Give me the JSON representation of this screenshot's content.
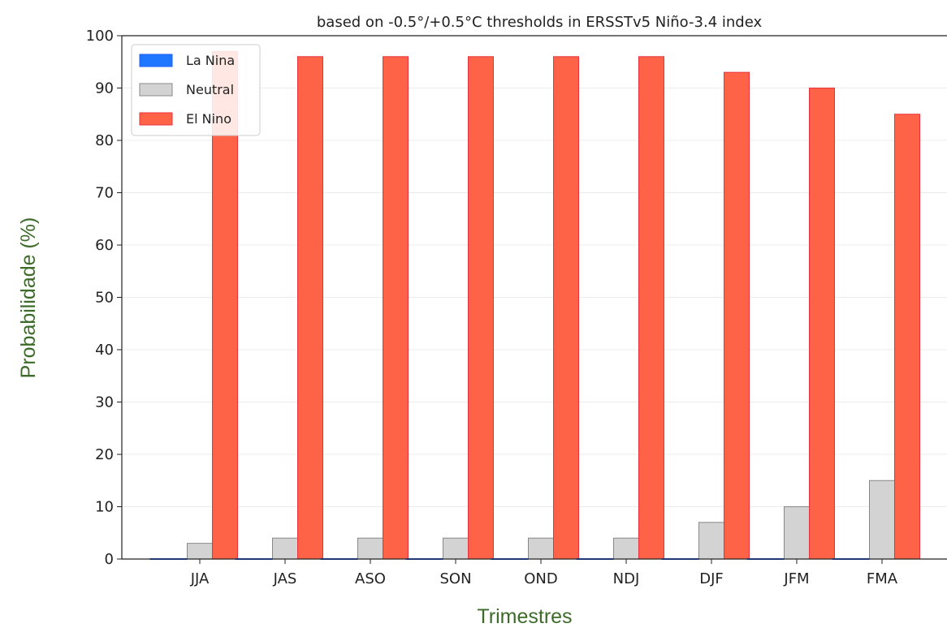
{
  "chart_data": {
    "type": "bar",
    "title": "based on -0.5°/+0.5°C thresholds in ERSSTv5 Niño-3.4 index",
    "xlabel": "Trimestres",
    "ylabel": "Probabilidade (%)",
    "ylim": [
      0,
      100
    ],
    "yticks": [
      "0",
      "10",
      "20",
      "30",
      "40",
      "50",
      "60",
      "70",
      "80",
      "90",
      "100"
    ],
    "grid": true,
    "legend_position": "top-left",
    "categories": [
      "JJA",
      "JAS",
      "ASO",
      "SON",
      "OND",
      "NDJ",
      "DJF",
      "JFM",
      "FMA"
    ],
    "series": [
      {
        "name": "La Nina",
        "color": "#1f77ff",
        "values": [
          0,
          0,
          0,
          0,
          0,
          0,
          0,
          0,
          0
        ]
      },
      {
        "name": "Neutral",
        "color": "#d3d3d3",
        "values": [
          3,
          4,
          4,
          4,
          4,
          4,
          7,
          10,
          15
        ]
      },
      {
        "name": "El Nino",
        "color": "#ff6347",
        "values": [
          97,
          96,
          96,
          96,
          96,
          96,
          93,
          90,
          85
        ]
      }
    ]
  }
}
